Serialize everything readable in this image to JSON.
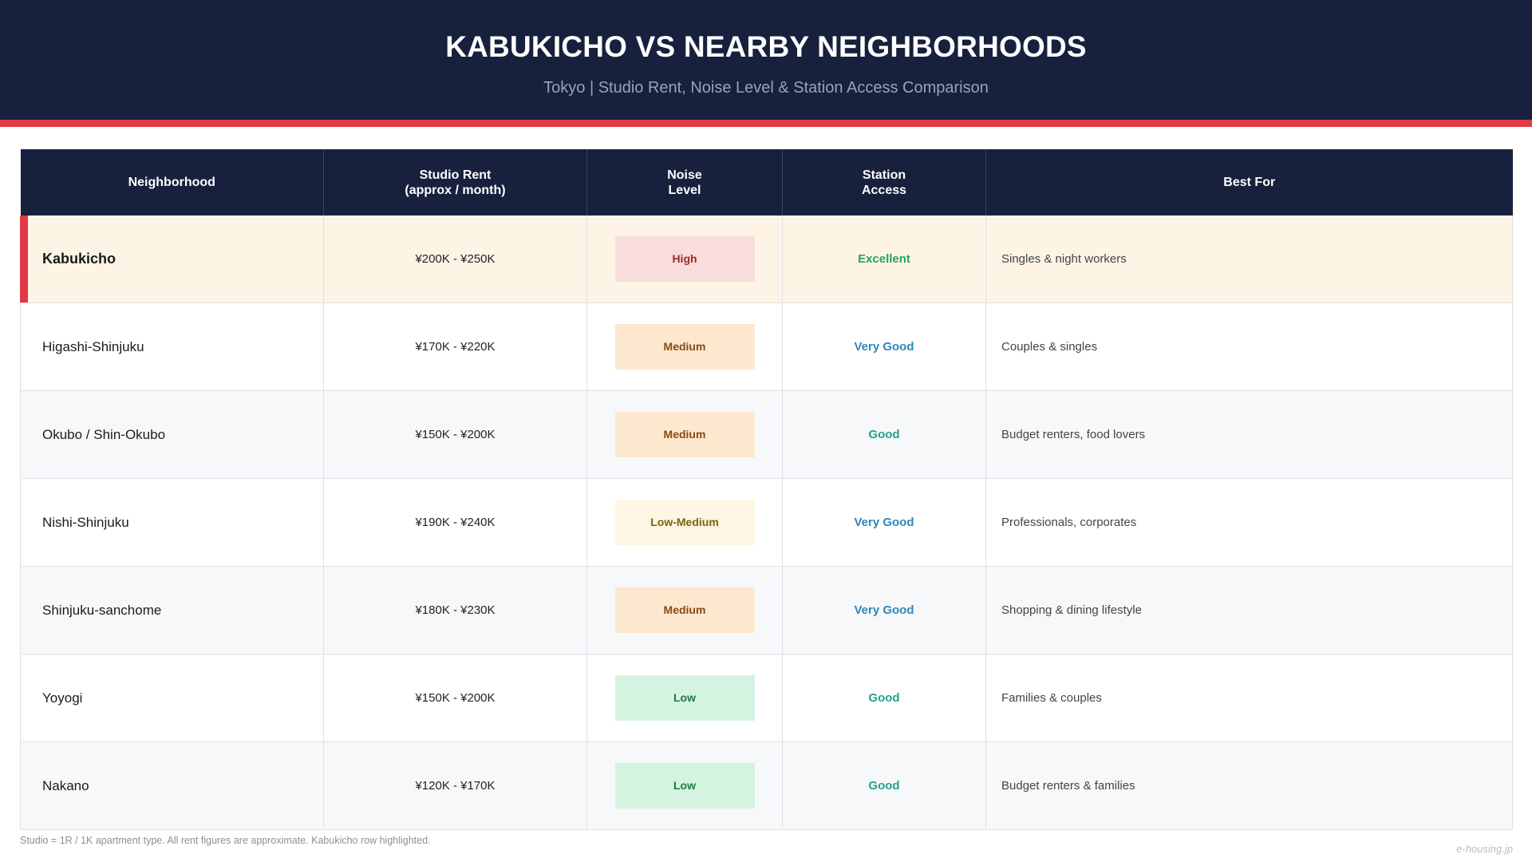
{
  "header": {
    "title": "KABUKICHO VS NEARBY NEIGHBORHOODS",
    "subtitle": "Tokyo  |  Studio Rent, Noise Level & Station Access Comparison"
  },
  "colors": {
    "header_bg": "#17203d",
    "accent": "#e13a45",
    "highlight_row": "#fdf4e6"
  },
  "table": {
    "columns": [
      "Neighborhood",
      "Studio Rent\n(approx / month)",
      "Noise\nLevel",
      "Station\nAccess",
      "Best For"
    ],
    "rows": [
      {
        "neighborhood": "Kabukicho",
        "rent": "¥200K - ¥250K",
        "noise": "High",
        "station": "Excellent",
        "best_for": "Singles & night workers"
      },
      {
        "neighborhood": "Higashi-Shinjuku",
        "rent": "¥170K - ¥220K",
        "noise": "Medium",
        "station": "Very Good",
        "best_for": "Couples & singles"
      },
      {
        "neighborhood": "Okubo / Shin-Okubo",
        "rent": "¥150K - ¥200K",
        "noise": "Medium",
        "station": "Good",
        "best_for": "Budget renters, food lovers"
      },
      {
        "neighborhood": "Nishi-Shinjuku",
        "rent": "¥190K - ¥240K",
        "noise": "Low-Medium",
        "station": "Very Good",
        "best_for": "Professionals, corporates"
      },
      {
        "neighborhood": "Shinjuku-sanchome",
        "rent": "¥180K - ¥230K",
        "noise": "Medium",
        "station": "Very Good",
        "best_for": "Shopping & dining lifestyle"
      },
      {
        "neighborhood": "Yoyogi",
        "rent": "¥150K - ¥200K",
        "noise": "Low",
        "station": "Good",
        "best_for": "Families & couples"
      },
      {
        "neighborhood": "Nakano",
        "rent": "¥120K - ¥170K",
        "noise": "Low",
        "station": "Good",
        "best_for": "Budget renters & families"
      }
    ]
  },
  "footnote": "Studio = 1R / 1K apartment type. All rent figures are approximate. Kabukicho row highlighted.",
  "watermark": "e-housing.jp"
}
